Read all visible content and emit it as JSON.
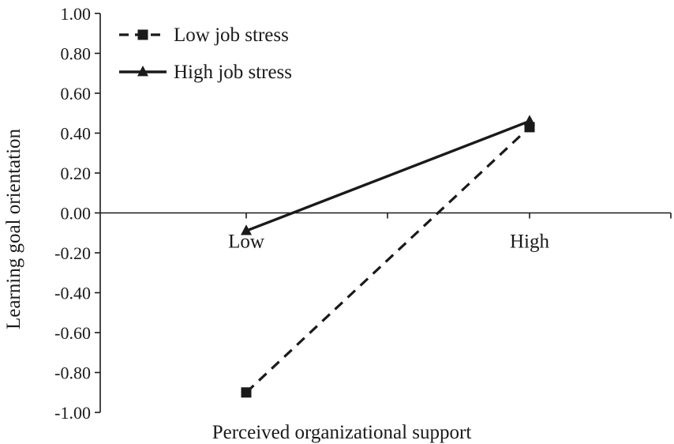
{
  "chart_data": {
    "type": "line",
    "title": "",
    "xlabel": "Perceived organizational support",
    "ylabel": "Learning goal orientation",
    "categories": [
      "Low",
      "High"
    ],
    "series": [
      {
        "name": "Low job stress",
        "values": [
          -0.9,
          0.43
        ],
        "line_style": "dashed",
        "marker": "square"
      },
      {
        "name": "High job stress",
        "values": [
          -0.09,
          0.46
        ],
        "line_style": "solid",
        "marker": "triangle"
      }
    ],
    "ylim": [
      -1.0,
      1.0
    ],
    "yticks": [
      "1.00",
      "0.80",
      "0.60",
      "0.40",
      "0.20",
      "0.00",
      "-0.20",
      "-0.40",
      "-0.60",
      "-0.80",
      "-1.00"
    ],
    "grid": false,
    "legend_position": "top-left",
    "colors": {
      "line": "#1a1a1a",
      "background": "#ffffff"
    }
  }
}
